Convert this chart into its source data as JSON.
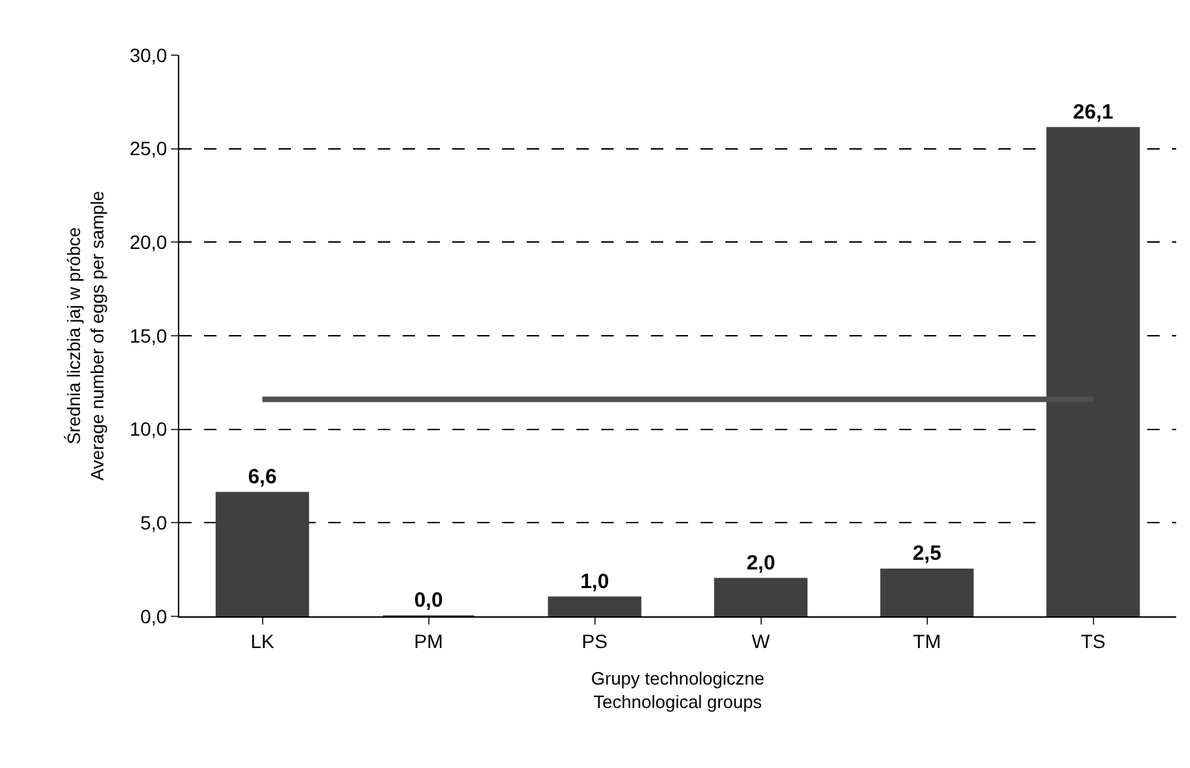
{
  "chart_data": {
    "type": "bar",
    "xlabel": "Grupy technologiczne\nTechnological groups",
    "ylabel": "Średnia liczbia jaj w próbce\nAverage number of eggs per sample",
    "categories": [
      "LK",
      "PM",
      "PS",
      "W",
      "TM",
      "TS"
    ],
    "series": [
      {
        "color": "#404040",
        "values": [
          6.6,
          0.0,
          1.0,
          2.0,
          2.5,
          26.1
        ],
        "value_labels": [
          "6,6",
          "0,0",
          "1,0",
          "2,0",
          "2,5",
          "26,1"
        ]
      },
      {
        "type": "line",
        "color": "#505050",
        "values": [
          11.6,
          11.6,
          11.6,
          11.6,
          11.6,
          11.6
        ]
      }
    ],
    "ylim": [
      0,
      30
    ],
    "yticks": [
      {
        "value": 0,
        "label": "0,0"
      },
      {
        "value": 5,
        "label": "5,0"
      },
      {
        "value": 10,
        "label": "10,0"
      },
      {
        "value": 15,
        "label": "15,0"
      },
      {
        "value": 20,
        "label": "20,0"
      },
      {
        "value": 25,
        "label": "25,0"
      },
      {
        "value": 30,
        "label": "30,0"
      }
    ],
    "grid": "y",
    "line_style": "solid",
    "marker": "none"
  }
}
